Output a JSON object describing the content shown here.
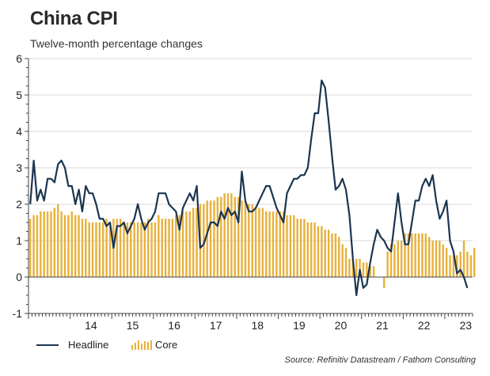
{
  "title": "China CPI",
  "subtitle": "Twelve-month percentage changes",
  "source": "Source: Refinitiv Datastream / Fathom Consulting",
  "legend": {
    "headline": "Headline",
    "core": "Core"
  },
  "colors": {
    "headline": "#1b3550",
    "core": "#e8b13c",
    "grid": "#d9d9d9",
    "axis": "#444444"
  },
  "chart_data": {
    "type": "line+bar",
    "title": "China CPI",
    "subtitle": "Twelve-month percentage changes",
    "x_start": "2013-01",
    "frequency": "monthly",
    "xlim": [
      0,
      128
    ],
    "ylim": [
      -1,
      6
    ],
    "yticks": [
      -1,
      0,
      1,
      2,
      3,
      4,
      5,
      6
    ],
    "x_ticks": [
      {
        "label": "14",
        "pos": 12
      },
      {
        "label": "15",
        "pos": 24
      },
      {
        "label": "16",
        "pos": 36
      },
      {
        "label": "17",
        "pos": 48
      },
      {
        "label": "18",
        "pos": 60
      },
      {
        "label": "19",
        "pos": 72
      },
      {
        "label": "20",
        "pos": 84
      },
      {
        "label": "21",
        "pos": 96
      },
      {
        "label": "22",
        "pos": 108
      },
      {
        "label": "23",
        "pos": 120
      }
    ],
    "grid": "horizontal",
    "legend_position": "bottom-left",
    "series": [
      {
        "name": "Headline",
        "kind": "line",
        "values": [
          2.0,
          3.2,
          2.1,
          2.4,
          2.1,
          2.7,
          2.7,
          2.6,
          3.1,
          3.2,
          3.0,
          2.5,
          2.5,
          2.0,
          2.4,
          1.8,
          2.5,
          2.3,
          2.3,
          2.0,
          1.6,
          1.6,
          1.4,
          1.5,
          0.8,
          1.4,
          1.4,
          1.5,
          1.2,
          1.4,
          1.6,
          2.0,
          1.6,
          1.3,
          1.5,
          1.6,
          1.8,
          2.3,
          2.3,
          2.3,
          2.0,
          1.9,
          1.8,
          1.3,
          1.9,
          2.1,
          2.3,
          2.1,
          2.5,
          0.8,
          0.9,
          1.2,
          1.5,
          1.5,
          1.4,
          1.8,
          1.6,
          1.9,
          1.7,
          1.8,
          1.5,
          2.9,
          2.1,
          1.8,
          1.8,
          1.9,
          2.1,
          2.3,
          2.5,
          2.5,
          2.2,
          1.9,
          1.7,
          1.5,
          2.3,
          2.5,
          2.7,
          2.7,
          2.8,
          2.8,
          3.0,
          3.8,
          4.5,
          4.5,
          5.4,
          5.2,
          4.3,
          3.3,
          2.4,
          2.5,
          2.7,
          2.4,
          1.7,
          0.5,
          -0.5,
          0.2,
          -0.3,
          -0.2,
          0.4,
          0.9,
          1.3,
          1.1,
          1.0,
          0.8,
          0.7,
          1.5,
          2.3,
          1.5,
          0.9,
          0.9,
          1.5,
          2.1,
          2.1,
          2.5,
          2.7,
          2.5,
          2.8,
          2.1,
          1.6,
          1.8,
          2.1,
          1.0,
          0.7,
          0.1,
          0.2,
          0.0,
          -0.3
        ]
      },
      {
        "name": "Core",
        "kind": "bar",
        "values": [
          1.6,
          1.7,
          1.7,
          1.8,
          1.8,
          1.8,
          1.8,
          1.9,
          2.0,
          1.8,
          1.7,
          1.7,
          1.8,
          1.7,
          1.7,
          1.6,
          1.6,
          1.5,
          1.5,
          1.5,
          1.5,
          1.5,
          1.6,
          1.5,
          1.6,
          1.6,
          1.6,
          1.5,
          1.5,
          1.5,
          1.5,
          1.5,
          1.5,
          1.5,
          1.6,
          1.5,
          1.5,
          1.7,
          1.6,
          1.6,
          1.6,
          1.6,
          1.7,
          1.7,
          1.8,
          1.8,
          1.8,
          1.9,
          1.9,
          2.0,
          2.0,
          2.1,
          2.1,
          2.1,
          2.2,
          2.2,
          2.3,
          2.3,
          2.3,
          2.2,
          2.2,
          2.1,
          2.1,
          2.0,
          2.0,
          1.9,
          1.9,
          1.9,
          1.8,
          1.8,
          1.8,
          1.8,
          1.8,
          1.8,
          1.7,
          1.7,
          1.7,
          1.6,
          1.6,
          1.6,
          1.5,
          1.5,
          1.5,
          1.4,
          1.4,
          1.3,
          1.3,
          1.2,
          1.2,
          1.1,
          0.9,
          0.8,
          0.5,
          0.5,
          0.5,
          0.5,
          0.4,
          0.4,
          0.3,
          0.3,
          0.0,
          0.0,
          -0.3,
          0.7,
          0.9,
          0.9,
          1.0,
          1.0,
          1.2,
          1.2,
          1.2,
          1.2,
          1.2,
          1.2,
          1.2,
          1.1,
          1.0,
          1.0,
          1.0,
          0.9,
          0.8,
          0.6,
          0.6,
          0.6,
          0.7,
          1.0,
          0.7,
          0.6,
          0.8
        ]
      }
    ]
  }
}
